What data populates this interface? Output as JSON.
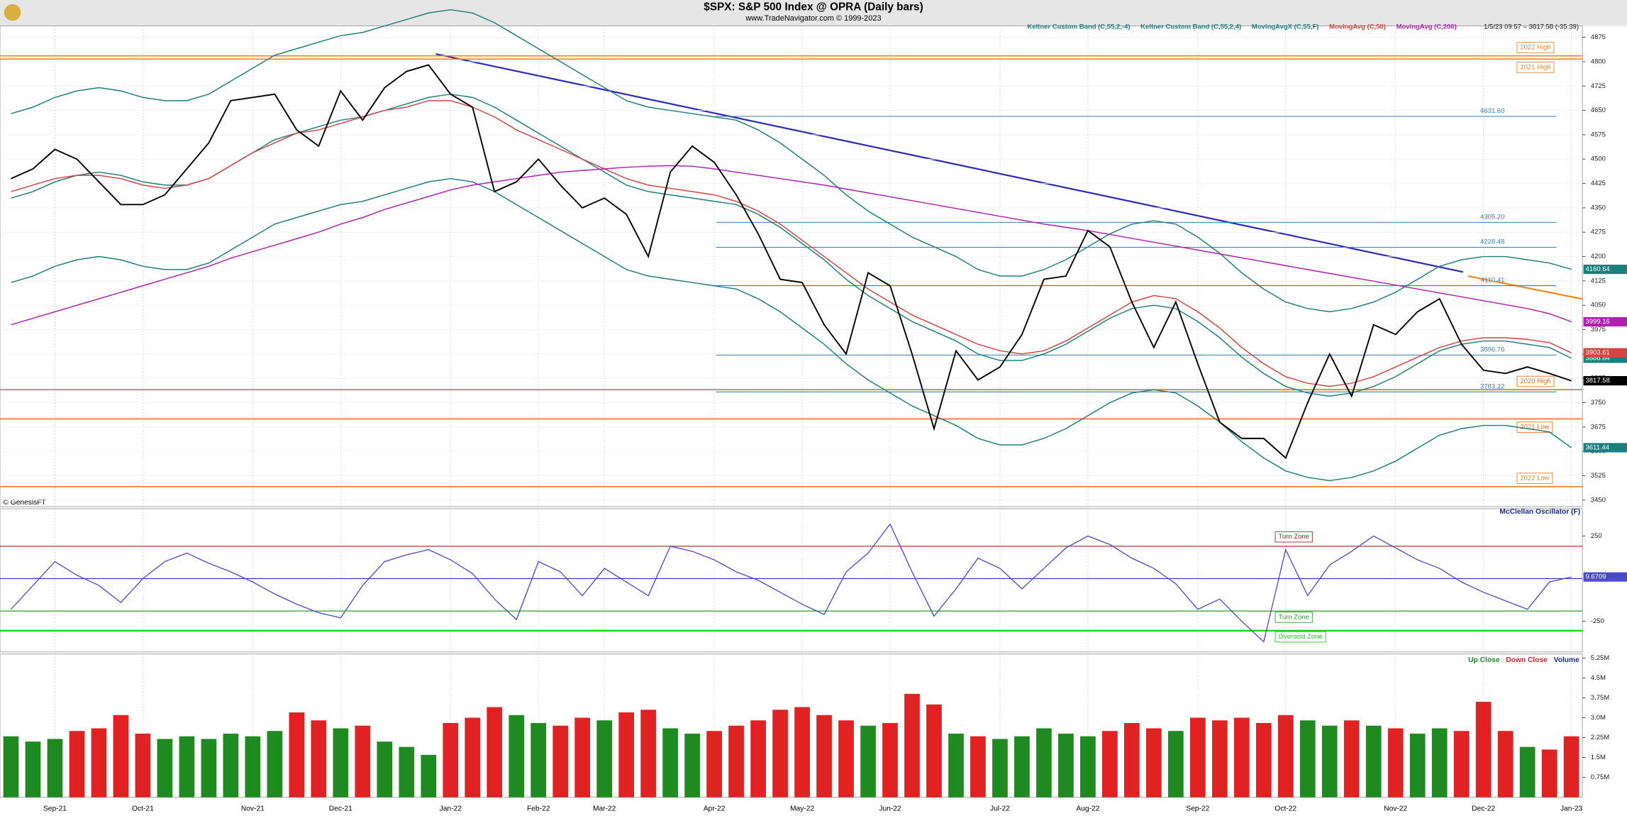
{
  "header": {
    "title": "$SPX:  S&P 500 Index @ OPRA  (Daily bars)",
    "subtitle": "www.TradeNavigator.com © 1999-2023",
    "info": "1/5/23 09:57 = 3817.58 (-35.39)",
    "credit": "© GenesisFT"
  },
  "chart_data": [
    {
      "type": "line",
      "color": "#000000",
      "last_label": "3817.58",
      "values": [
        4440,
        4470,
        4530,
        4500,
        4430,
        4360,
        4360,
        4390,
        4470,
        4550,
        4680,
        4690,
        4700,
        4590,
        4540,
        4710,
        4620,
        4720,
        4770,
        4790,
        4700,
        4660,
        4400,
        4430,
        4500,
        4420,
        4350,
        4380,
        4330,
        4200,
        4460,
        4540,
        4490,
        4390,
        4270,
        4130,
        4120,
        3990,
        3900,
        4150,
        4110,
        3900,
        3670,
        3910,
        3820,
        3860,
        3960,
        4130,
        4140,
        4280,
        4230,
        4060,
        3920,
        4060,
        3870,
        3690,
        3640,
        3640,
        3580,
        3750,
        3900,
        3770,
        3990,
        3960,
        4030,
        4070,
        3930,
        3850,
        3840,
        3860,
        3840,
        3817.58
      ],
      "ylim": [
        3430,
        4910
      ],
      "yticks": [
        4875,
        4800,
        4725,
        4650,
        4575,
        4500,
        4425,
        4350,
        4275,
        4200,
        4125,
        4050,
        3975,
        3900,
        3825,
        3750,
        3675,
        3600,
        3525,
        3450
      ],
      "grid": true,
      "series": [
        {
          "name": "Keltner Custom Band (C,55,2,-4)",
          "color": "#1a7f7f",
          "last_label": "3611.44",
          "values": [
            4120,
            4140,
            4170,
            4190,
            4200,
            4190,
            4170,
            4160,
            4160,
            4180,
            4220,
            4260,
            4300,
            4320,
            4340,
            4360,
            4370,
            4390,
            4410,
            4430,
            4440,
            4430,
            4400,
            4360,
            4320,
            4280,
            4240,
            4200,
            4160,
            4140,
            4130,
            4120,
            4110,
            4100,
            4070,
            4030,
            3980,
            3930,
            3870,
            3820,
            3780,
            3740,
            3710,
            3680,
            3640,
            3620,
            3620,
            3640,
            3670,
            3710,
            3750,
            3780,
            3790,
            3780,
            3740,
            3690,
            3630,
            3580,
            3540,
            3520,
            3510,
            3520,
            3540,
            3570,
            3610,
            3650,
            3670,
            3680,
            3680,
            3670,
            3660,
            3611.44
          ]
        },
        {
          "name": "Keltner Custom Band (C,55,2,4)",
          "color": "#1a7f7f",
          "last_label": "4160.64",
          "values": [
            4640,
            4660,
            4690,
            4710,
            4720,
            4710,
            4690,
            4680,
            4680,
            4700,
            4740,
            4780,
            4820,
            4840,
            4860,
            4880,
            4890,
            4910,
            4930,
            4950,
            4960,
            4950,
            4920,
            4880,
            4840,
            4800,
            4760,
            4720,
            4680,
            4660,
            4650,
            4640,
            4630,
            4620,
            4590,
            4550,
            4500,
            4450,
            4390,
            4340,
            4300,
            4260,
            4230,
            4200,
            4160,
            4140,
            4140,
            4160,
            4190,
            4230,
            4270,
            4300,
            4310,
            4300,
            4260,
            4210,
            4150,
            4100,
            4060,
            4040,
            4030,
            4040,
            4060,
            4090,
            4130,
            4170,
            4190,
            4200,
            4200,
            4190,
            4180,
            4160.64
          ]
        },
        {
          "name": "MovingAvgX (C,55,F)",
          "color": "#1a7f7f",
          "last_label": "3886.84",
          "values": [
            4380,
            4400,
            4430,
            4450,
            4460,
            4450,
            4430,
            4420,
            4420,
            4440,
            4480,
            4520,
            4560,
            4580,
            4600,
            4620,
            4630,
            4650,
            4670,
            4690,
            4700,
            4690,
            4660,
            4620,
            4580,
            4540,
            4500,
            4460,
            4420,
            4400,
            4390,
            4380,
            4370,
            4360,
            4330,
            4290,
            4240,
            4190,
            4130,
            4080,
            4040,
            4000,
            3970,
            3940,
            3900,
            3880,
            3880,
            3900,
            3930,
            3970,
            4010,
            4040,
            4050,
            4040,
            4000,
            3950,
            3890,
            3840,
            3800,
            3780,
            3770,
            3780,
            3800,
            3830,
            3870,
            3910,
            3930,
            3940,
            3940,
            3930,
            3920,
            3886.84
          ]
        },
        {
          "name": "MovingAvg (C,50)",
          "color": "#d8433f",
          "last_label": "3903.61",
          "values": [
            4400,
            4420,
            4440,
            4450,
            4450,
            4440,
            4420,
            4410,
            4420,
            4440,
            4480,
            4520,
            4550,
            4580,
            4590,
            4610,
            4630,
            4650,
            4660,
            4680,
            4680,
            4660,
            4630,
            4590,
            4560,
            4530,
            4500,
            4470,
            4440,
            4420,
            4410,
            4400,
            4390,
            4370,
            4340,
            4300,
            4250,
            4200,
            4150,
            4100,
            4060,
            4020,
            3990,
            3960,
            3930,
            3910,
            3900,
            3910,
            3940,
            3980,
            4020,
            4060,
            4080,
            4070,
            4030,
            3980,
            3920,
            3870,
            3830,
            3810,
            3800,
            3810,
            3830,
            3860,
            3890,
            3920,
            3940,
            3950,
            3950,
            3945,
            3935,
            3903.61
          ]
        },
        {
          "name": "MovingAvg (C,200)",
          "color": "#b01fb0",
          "last_label": "3999.16",
          "values": [
            3990,
            4010,
            4030,
            4050,
            4070,
            4090,
            4110,
            4130,
            4150,
            4170,
            4195,
            4215,
            4235,
            4255,
            4275,
            4300,
            4320,
            4345,
            4365,
            4385,
            4405,
            4420,
            4430,
            4440,
            4450,
            4460,
            4465,
            4470,
            4475,
            4478,
            4480,
            4478,
            4470,
            4460,
            4450,
            4440,
            4430,
            4420,
            4408,
            4396,
            4384,
            4372,
            4360,
            4348,
            4336,
            4324,
            4312,
            4300,
            4290,
            4280,
            4268,
            4256,
            4244,
            4232,
            4220,
            4208,
            4196,
            4184,
            4172,
            4160,
            4148,
            4136,
            4124,
            4112,
            4100,
            4088,
            4076,
            4064,
            4052,
            4040,
            4024,
            3999.16
          ]
        }
      ],
      "hlines": [
        {
          "label": "2022 High",
          "value": 4818,
          "color": "#e8862a"
        },
        {
          "label": "2021 High",
          "value": 4808,
          "color": "#e8862a"
        },
        {
          "label": "2020 High",
          "value": 3790,
          "color": "#f07020"
        },
        {
          "label": "2021 Low",
          "value": 3700,
          "color": "#f07020"
        },
        {
          "label": "2022 Low",
          "value": 3491.58,
          "color": "#e8862a"
        }
      ],
      "levels": [
        {
          "label": "4631.60",
          "value": 4631.6
        },
        {
          "label": "4305.20",
          "value": 4305.2
        },
        {
          "label": "4228.48",
          "value": 4228.48
        },
        {
          "label": "4110.41",
          "value": 4110.41
        },
        {
          "label": "3896.76",
          "value": 3896.76
        },
        {
          "label": "3783.22",
          "value": 3783.22
        }
      ]
    },
    {
      "type": "line",
      "title": "McClellan Oscillator (F)",
      "color": "#4a4ad0",
      "last_label": "9.6709",
      "values": [
        -180,
        -40,
        100,
        20,
        -40,
        -140,
        0,
        100,
        150,
        90,
        40,
        -20,
        -90,
        -150,
        -200,
        -230,
        -40,
        100,
        140,
        170,
        110,
        30,
        -120,
        -240,
        100,
        40,
        -100,
        60,
        -20,
        -100,
        190,
        160,
        110,
        40,
        -10,
        -80,
        -150,
        -210,
        40,
        150,
        320,
        40,
        -220,
        -60,
        120,
        60,
        -60,
        60,
        180,
        250,
        200,
        120,
        60,
        -30,
        -180,
        -120,
        -250,
        -370,
        170,
        -100,
        80,
        160,
        250,
        180,
        110,
        60,
        -20,
        -80,
        -130,
        -180,
        -20,
        9.6709
      ],
      "ylim": [
        -430,
        410
      ],
      "yticks": [
        250,
        -250
      ],
      "zones": [
        {
          "label": "Turn Zone",
          "value": 190,
          "color": "#b02020"
        },
        {
          "label": "Turn Zone",
          "value": -190,
          "color": "#2aa02a"
        },
        {
          "label": "Oversold Zone",
          "value": -305,
          "color": "#22cc22"
        }
      ]
    },
    {
      "type": "bar",
      "ylabel": "Volume",
      "categories": [
        null,
        null,
        "Sep-21",
        null,
        null,
        null,
        "Oct-21",
        null,
        null,
        null,
        null,
        "Nov-21",
        null,
        null,
        null,
        "Dec-21",
        null,
        null,
        null,
        null,
        "Jan-22",
        null,
        null,
        null,
        "Feb-22",
        null,
        null,
        "Mar-22",
        null,
        null,
        null,
        null,
        "Apr-22",
        null,
        null,
        null,
        "May-22",
        null,
        null,
        null,
        "Jun-22",
        null,
        null,
        null,
        null,
        "Jul-22",
        null,
        null,
        null,
        "Aug-22",
        null,
        null,
        null,
        null,
        "Sep-22",
        null,
        null,
        null,
        "Oct-22",
        null,
        null,
        null,
        null,
        "Nov-22",
        null,
        null,
        null,
        "Dec-22",
        null,
        null,
        null,
        "Jan-23"
      ],
      "ylim": [
        0,
        5.4
      ],
      "yticks": [
        {
          "value": 5.25,
          "label": "5.25M"
        },
        {
          "value": 4.5,
          "label": "4.5M"
        },
        {
          "value": 3.75,
          "label": "3.75M"
        },
        {
          "value": 3.0,
          "label": "3.0M"
        },
        {
          "value": 2.25,
          "label": "2.25M"
        },
        {
          "value": 1.5,
          "label": "1.5M"
        },
        {
          "value": 0.75,
          "label": "0.75M"
        }
      ],
      "series": [
        {
          "name": "Up Close",
          "color": "#1f8a1f",
          "values": [
            2.3,
            2.1,
            2.2,
            null,
            null,
            null,
            null,
            2.2,
            2.3,
            2.2,
            2.4,
            2.3,
            2.5,
            null,
            null,
            2.6,
            null,
            2.1,
            1.9,
            1.6,
            null,
            null,
            null,
            3.1,
            2.8,
            null,
            null,
            2.9,
            null,
            null,
            2.6,
            2.4,
            null,
            null,
            null,
            null,
            null,
            null,
            null,
            2.7,
            null,
            null,
            null,
            2.4,
            null,
            2.2,
            2.3,
            2.6,
            2.4,
            2.3,
            null,
            null,
            null,
            2.5,
            null,
            null,
            null,
            null,
            null,
            2.9,
            2.7,
            null,
            2.7,
            null,
            2.4,
            2.6,
            null,
            null,
            null,
            1.9,
            null,
            null
          ]
        },
        {
          "name": "Down Close",
          "color": "#e02222",
          "values": [
            null,
            null,
            null,
            2.5,
            2.6,
            3.1,
            2.4,
            null,
            null,
            null,
            null,
            null,
            null,
            3.2,
            2.9,
            null,
            2.7,
            null,
            null,
            null,
            2.8,
            3.0,
            3.4,
            null,
            null,
            2.7,
            3.0,
            null,
            3.2,
            3.3,
            null,
            null,
            2.5,
            2.7,
            2.9,
            3.3,
            3.4,
            3.1,
            2.9,
            null,
            2.8,
            3.9,
            3.5,
            null,
            2.3,
            null,
            null,
            null,
            null,
            null,
            2.5,
            2.8,
            2.6,
            null,
            3.0,
            2.9,
            3.0,
            2.8,
            3.1,
            null,
            null,
            2.9,
            null,
            2.6,
            null,
            null,
            2.5,
            3.6,
            2.5,
            null,
            1.8,
            2.3
          ]
        }
      ]
    }
  ]
}
